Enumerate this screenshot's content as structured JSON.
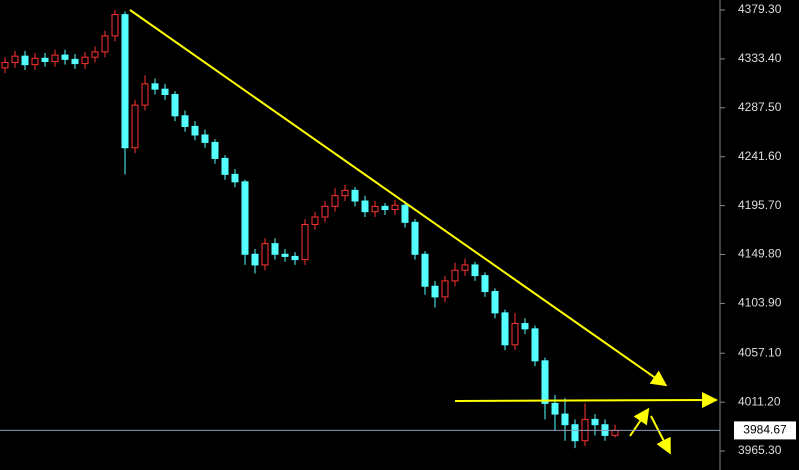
{
  "chart_data": {
    "type": "candlestick",
    "up_color": "#ff3232",
    "down_color": "#54ffff",
    "ylim": [
      3947.5,
      4388.7
    ],
    "yticks": [
      {
        "value": 4379.3,
        "label": "4379.30"
      },
      {
        "value": 4333.4,
        "label": "4333.40"
      },
      {
        "value": 4287.5,
        "label": "4287.50"
      },
      {
        "value": 4241.6,
        "label": "4241.60"
      },
      {
        "value": 4195.7,
        "label": "4195.70"
      },
      {
        "value": 4149.8,
        "label": "4149.80"
      },
      {
        "value": 4103.9,
        "label": "4103.90"
      },
      {
        "value": 4057.1,
        "label": "4057.10"
      },
      {
        "value": 4011.2,
        "label": "4011.20"
      },
      {
        "value": 3965.3,
        "label": "3965.30"
      }
    ],
    "last_price": 3984.67,
    "open": [
      4325,
      4330,
      4336,
      4328,
      4334,
      4331,
      4337,
      4333,
      4329,
      4335,
      4340,
      4355,
      4375,
      4250,
      4290,
      4310,
      4305,
      4300,
      4280,
      4270,
      4262,
      4255,
      4240,
      4225,
      4218,
      4150,
      4140,
      4160,
      4150,
      4148,
      4145,
      4178,
      4185,
      4195,
      4205,
      4210,
      4200,
      4190,
      4195,
      4192,
      4196,
      4180,
      4150,
      4120,
      4110,
      4125,
      4135,
      4140,
      4130,
      4115,
      4095,
      4065,
      4085,
      4080,
      4050,
      4010,
      4000,
      3990,
      3975,
      3995,
      3990,
      3980
    ],
    "high": [
      4335,
      4341,
      4341,
      4339,
      4339,
      4342,
      4342,
      4338,
      4340,
      4345,
      4360,
      4379.3,
      4378,
      4295,
      4318,
      4315,
      4310,
      4303,
      4285,
      4275,
      4267,
      4258,
      4243,
      4230,
      4220,
      4155,
      4165,
      4165,
      4155,
      4152,
      4183,
      4190,
      4200,
      4212,
      4215,
      4213,
      4205,
      4200,
      4198,
      4201,
      4200,
      4183,
      4153,
      4125,
      4130,
      4142,
      4146,
      4143,
      4133,
      4118,
      4098,
      4095,
      4090,
      4083,
      4053,
      4018,
      4015,
      3995,
      4010,
      4000,
      3995,
      3990
    ],
    "low": [
      4320,
      4325,
      4323,
      4323,
      4326,
      4326,
      4328,
      4324,
      4324,
      4330,
      4335,
      4350,
      4225,
      4245,
      4285,
      4300,
      4295,
      4275,
      4265,
      4257,
      4250,
      4235,
      4220,
      4213,
      4140,
      4132,
      4135,
      4145,
      4143,
      4140,
      4140,
      4173,
      4180,
      4190,
      4200,
      4195,
      4185,
      4185,
      4187,
      4187,
      4175,
      4145,
      4112,
      4100,
      4105,
      4120,
      4130,
      4125,
      4110,
      4090,
      4060,
      4060,
      4075,
      4045,
      3995,
      3985,
      3975,
      3968,
      3970,
      3980,
      3975,
      3978
    ],
    "close": [
      4330,
      4336,
      4328,
      4334,
      4331,
      4337,
      4333,
      4329,
      4335,
      4340,
      4355,
      4375,
      4250,
      4290,
      4310,
      4305,
      4300,
      4280,
      4270,
      4262,
      4255,
      4240,
      4225,
      4218,
      4150,
      4140,
      4160,
      4150,
      4148,
      4145,
      4178,
      4185,
      4195,
      4205,
      4210,
      4200,
      4190,
      4195,
      4192,
      4196,
      4180,
      4150,
      4120,
      4110,
      4125,
      4135,
      4140,
      4130,
      4115,
      4095,
      4065,
      4085,
      4080,
      4050,
      4010,
      4000,
      3990,
      3975,
      3995,
      3990,
      3980,
      3984.67
    ]
  }
}
